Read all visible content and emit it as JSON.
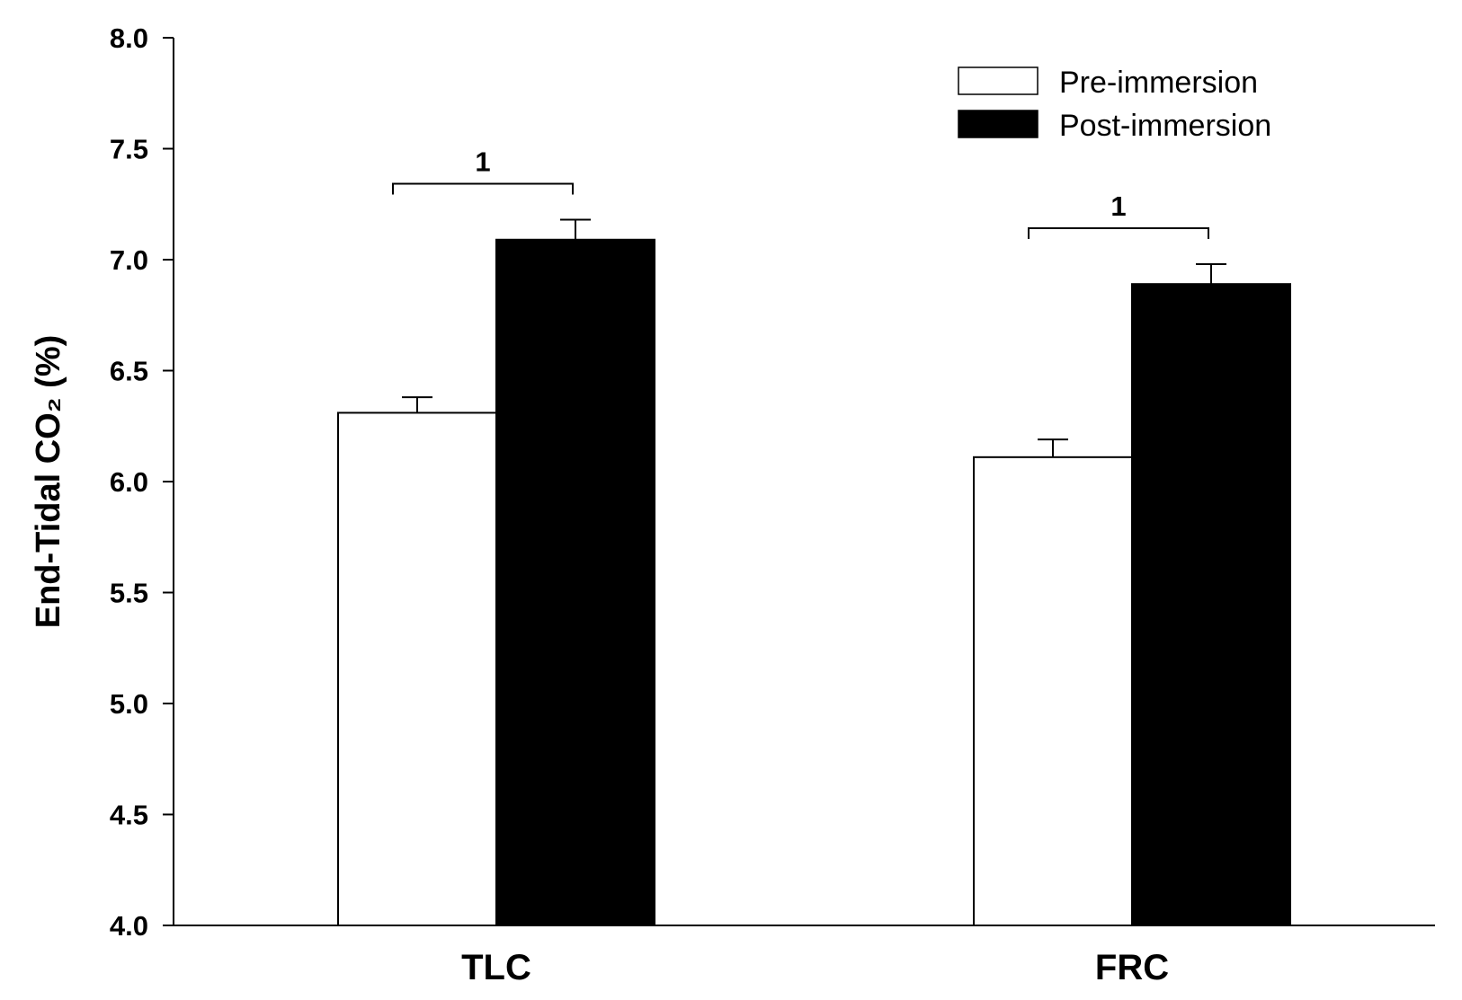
{
  "chart_data": {
    "type": "bar",
    "title": "",
    "xlabel": "",
    "ylabel": "End-Tidal CO₂ (%)",
    "ylim": [
      4.0,
      8.0
    ],
    "yticks": [
      "4.0",
      "4.5",
      "5.0",
      "5.5",
      "6.0",
      "6.5",
      "7.0",
      "7.5",
      "8.0"
    ],
    "categories": [
      "TLC",
      "FRC"
    ],
    "series": [
      {
        "name": "Pre-immersion",
        "values": [
          6.31,
          6.11
        ],
        "errors": [
          0.07,
          0.08
        ],
        "fill": "#ffffff"
      },
      {
        "name": "Post-immersion",
        "values": [
          7.09,
          6.89
        ],
        "errors": [
          0.09,
          0.09
        ],
        "fill": "#000000"
      }
    ],
    "significance": [
      {
        "category": "TLC",
        "label": "1"
      },
      {
        "category": "FRC",
        "label": "1"
      }
    ],
    "legend_position": "top-right",
    "grid": false
  }
}
